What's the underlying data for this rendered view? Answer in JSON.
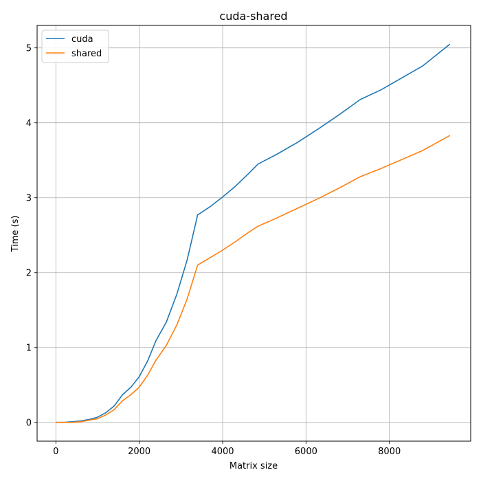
{
  "chart_data": {
    "type": "line",
    "title": "cuda-shared",
    "xlabel": "Matrix size",
    "ylabel": "Time (s)",
    "xlim": [
      -450,
      9950
    ],
    "ylim": [
      -0.25,
      5.3
    ],
    "xticks": [
      0,
      2000,
      4000,
      6000,
      8000
    ],
    "yticks": [
      0,
      1,
      2,
      3,
      4,
      5
    ],
    "xtick_labels": [
      "0",
      "2000",
      "4000",
      "6000",
      "8000"
    ],
    "ytick_labels": [
      "0",
      "1",
      "2",
      "3",
      "4",
      "5"
    ],
    "grid": true,
    "legend_position": "upper-left",
    "x": [
      0,
      200,
      400,
      600,
      800,
      1000,
      1200,
      1400,
      1600,
      1800,
      2000,
      2200,
      2400,
      2650,
      2900,
      3150,
      3400,
      3700,
      4000,
      4300,
      4600,
      4850,
      5300,
      5800,
      6300,
      6800,
      7300,
      7800,
      8300,
      8800,
      9450
    ],
    "series": [
      {
        "name": "cuda",
        "color": "#1f77b4",
        "values": [
          0.0,
          0.0,
          0.01,
          0.02,
          0.04,
          0.07,
          0.13,
          0.22,
          0.37,
          0.47,
          0.61,
          0.82,
          1.09,
          1.34,
          1.71,
          2.17,
          2.77,
          2.88,
          3.01,
          3.15,
          3.31,
          3.45,
          3.58,
          3.74,
          3.92,
          4.11,
          4.31,
          4.44,
          4.6,
          4.76,
          5.05
        ]
      },
      {
        "name": "shared",
        "color": "#ff7f0e",
        "values": [
          0.0,
          0.0,
          0.0,
          0.01,
          0.03,
          0.05,
          0.1,
          0.17,
          0.29,
          0.37,
          0.47,
          0.63,
          0.83,
          1.03,
          1.3,
          1.65,
          2.1,
          2.2,
          2.3,
          2.41,
          2.53,
          2.62,
          2.73,
          2.86,
          2.99,
          3.13,
          3.28,
          3.39,
          3.51,
          3.63,
          3.83
        ]
      }
    ]
  }
}
